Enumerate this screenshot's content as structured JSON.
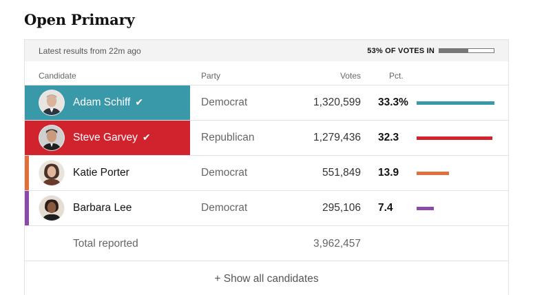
{
  "title": "Open Primary",
  "status": {
    "latest": "Latest results from 22m ago",
    "votes_in": "53% OF VOTES IN",
    "votes_in_fraction": 0.53
  },
  "columns": {
    "candidate": "Candidate",
    "party": "Party",
    "votes": "Votes",
    "pct": "Pct."
  },
  "candidates": [
    {
      "name": "Adam Schiff",
      "winner": true,
      "party": "Democrat",
      "votes": "1,320,599",
      "pct": "33.3%",
      "pct_value": 33.3,
      "color": "#3a99a8"
    },
    {
      "name": "Steve Garvey",
      "winner": true,
      "party": "Republican",
      "votes": "1,279,436",
      "pct": "32.3",
      "pct_value": 32.3,
      "color": "#d0232e"
    },
    {
      "name": "Katie Porter",
      "winner": false,
      "party": "Democrat",
      "votes": "551,849",
      "pct": "13.9",
      "pct_value": 13.9,
      "color": "#e06f3e"
    },
    {
      "name": "Barbara Lee",
      "winner": false,
      "party": "Democrat",
      "votes": "295,106",
      "pct": "7.4",
      "pct_value": 7.4,
      "color": "#8a4aa8"
    }
  ],
  "total": {
    "label": "Total reported",
    "votes": "3,962,457"
  },
  "show_all": "+ Show all candidates",
  "check_icon": "checkmark-icon"
}
